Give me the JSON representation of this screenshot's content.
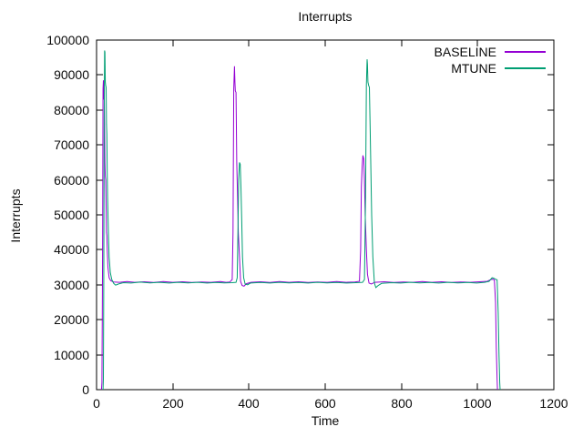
{
  "chart_data": {
    "type": "line",
    "title": "Interrupts",
    "xlabel": "Time",
    "ylabel": "Interrupts",
    "xlim": [
      0,
      1200
    ],
    "ylim": [
      0,
      100000
    ],
    "xticks": [
      0,
      200,
      400,
      600,
      800,
      1000,
      1200
    ],
    "yticks": [
      0,
      10000,
      20000,
      30000,
      40000,
      50000,
      60000,
      70000,
      80000,
      90000,
      100000
    ],
    "grid": false,
    "legend_position": "top-right-inside",
    "axis_color": "#000000",
    "series": [
      {
        "name": "BASELINE",
        "color": "#9400d3",
        "points": [
          [
            13,
            0
          ],
          [
            14,
            2000
          ],
          [
            15,
            21000
          ],
          [
            16,
            45000
          ],
          [
            17,
            86000
          ],
          [
            18,
            88500
          ],
          [
            19,
            83000
          ],
          [
            20,
            86500
          ],
          [
            21,
            75000
          ],
          [
            22,
            65000
          ],
          [
            23,
            61000
          ],
          [
            24,
            60000
          ],
          [
            25,
            52000
          ],
          [
            26,
            45000
          ],
          [
            27,
            44000
          ],
          [
            28,
            40000
          ],
          [
            30,
            35000
          ],
          [
            33,
            32000
          ],
          [
            37,
            31200
          ],
          [
            45,
            30800
          ],
          [
            60,
            30700
          ],
          [
            80,
            30900
          ],
          [
            100,
            30700
          ],
          [
            125,
            30850
          ],
          [
            150,
            30650
          ],
          [
            175,
            30900
          ],
          [
            200,
            30700
          ],
          [
            225,
            30850
          ],
          [
            250,
            30650
          ],
          [
            275,
            30800
          ],
          [
            300,
            30700
          ],
          [
            325,
            30900
          ],
          [
            340,
            30700
          ],
          [
            350,
            30800
          ],
          [
            356,
            31500
          ],
          [
            358,
            45000
          ],
          [
            360,
            86000
          ],
          [
            362,
            92500
          ],
          [
            363,
            88000
          ],
          [
            364,
            85500
          ],
          [
            366,
            85000
          ],
          [
            368,
            65000
          ],
          [
            370,
            55000
          ],
          [
            372,
            45000
          ],
          [
            375,
            38000
          ],
          [
            378,
            31000
          ],
          [
            382,
            29800
          ],
          [
            387,
            29600
          ],
          [
            393,
            30300
          ],
          [
            405,
            30700
          ],
          [
            430,
            30850
          ],
          [
            455,
            30650
          ],
          [
            480,
            30900
          ],
          [
            505,
            30700
          ],
          [
            530,
            30850
          ],
          [
            555,
            30650
          ],
          [
            580,
            30800
          ],
          [
            605,
            30700
          ],
          [
            630,
            30900
          ],
          [
            655,
            30700
          ],
          [
            678,
            30800
          ],
          [
            690,
            31000
          ],
          [
            693,
            40000
          ],
          [
            695,
            58000
          ],
          [
            697,
            64000
          ],
          [
            699,
            67000
          ],
          [
            701,
            66000
          ],
          [
            703,
            60000
          ],
          [
            705,
            50000
          ],
          [
            708,
            40000
          ],
          [
            711,
            33000
          ],
          [
            715,
            30500
          ],
          [
            721,
            30200
          ],
          [
            730,
            30700
          ],
          [
            755,
            30850
          ],
          [
            780,
            30650
          ],
          [
            805,
            30800
          ],
          [
            830,
            30700
          ],
          [
            855,
            30900
          ],
          [
            880,
            30700
          ],
          [
            905,
            30850
          ],
          [
            930,
            30650
          ],
          [
            955,
            30800
          ],
          [
            980,
            30700
          ],
          [
            1005,
            30850
          ],
          [
            1025,
            31000
          ],
          [
            1035,
            31500
          ],
          [
            1040,
            31600
          ],
          [
            1044,
            31400
          ],
          [
            1047,
            25000
          ],
          [
            1049,
            12000
          ],
          [
            1051,
            3000
          ],
          [
            1052,
            0
          ]
        ]
      },
      {
        "name": "MTUNE",
        "color": "#009e73",
        "points": [
          [
            17,
            0
          ],
          [
            18,
            3000
          ],
          [
            19,
            30000
          ],
          [
            20,
            78000
          ],
          [
            21,
            97000
          ],
          [
            22,
            96500
          ],
          [
            23,
            88000
          ],
          [
            24,
            87000
          ],
          [
            25,
            86500
          ],
          [
            26,
            76000
          ],
          [
            27,
            73000
          ],
          [
            28,
            62000
          ],
          [
            29,
            55000
          ],
          [
            31,
            45000
          ],
          [
            33,
            38000
          ],
          [
            36,
            33500
          ],
          [
            40,
            31500
          ],
          [
            45,
            30400
          ],
          [
            50,
            29900
          ],
          [
            57,
            30200
          ],
          [
            70,
            30600
          ],
          [
            90,
            30500
          ],
          [
            115,
            30750
          ],
          [
            140,
            30550
          ],
          [
            165,
            30700
          ],
          [
            190,
            30500
          ],
          [
            215,
            30700
          ],
          [
            240,
            30550
          ],
          [
            265,
            30700
          ],
          [
            290,
            30500
          ],
          [
            315,
            30650
          ],
          [
            335,
            30550
          ],
          [
            355,
            30600
          ],
          [
            366,
            30700
          ],
          [
            369,
            32000
          ],
          [
            371,
            45000
          ],
          [
            373,
            60000
          ],
          [
            375,
            65000
          ],
          [
            377,
            64500
          ],
          [
            379,
            58000
          ],
          [
            381,
            48000
          ],
          [
            383,
            38000
          ],
          [
            386,
            32000
          ],
          [
            390,
            30200
          ],
          [
            396,
            30000
          ],
          [
            404,
            30500
          ],
          [
            430,
            30650
          ],
          [
            455,
            30500
          ],
          [
            480,
            30700
          ],
          [
            505,
            30550
          ],
          [
            530,
            30650
          ],
          [
            555,
            30500
          ],
          [
            580,
            30700
          ],
          [
            605,
            30550
          ],
          [
            630,
            30650
          ],
          [
            655,
            30500
          ],
          [
            680,
            30600
          ],
          [
            698,
            30700
          ],
          [
            703,
            31500
          ],
          [
            706,
            55000
          ],
          [
            708,
            87000
          ],
          [
            710,
            94500
          ],
          [
            711,
            93000
          ],
          [
            712,
            88000
          ],
          [
            714,
            87000
          ],
          [
            716,
            86500
          ],
          [
            718,
            74000
          ],
          [
            720,
            62000
          ],
          [
            722,
            50000
          ],
          [
            725,
            38000
          ],
          [
            729,
            30500
          ],
          [
            733,
            29200
          ],
          [
            739,
            29800
          ],
          [
            748,
            30400
          ],
          [
            773,
            30600
          ],
          [
            798,
            30500
          ],
          [
            823,
            30700
          ],
          [
            848,
            30550
          ],
          [
            873,
            30650
          ],
          [
            898,
            30500
          ],
          [
            923,
            30700
          ],
          [
            948,
            30550
          ],
          [
            973,
            30650
          ],
          [
            998,
            30500
          ],
          [
            1018,
            30700
          ],
          [
            1030,
            31000
          ],
          [
            1038,
            32000
          ],
          [
            1042,
            31900
          ],
          [
            1047,
            31600
          ],
          [
            1051,
            31400
          ],
          [
            1054,
            22000
          ],
          [
            1056,
            10000
          ],
          [
            1058,
            2000
          ],
          [
            1059,
            0
          ]
        ]
      }
    ]
  }
}
